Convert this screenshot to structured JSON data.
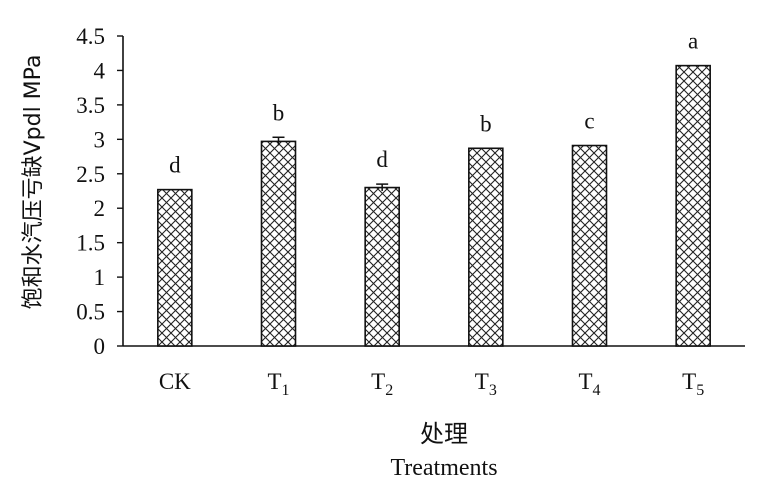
{
  "chart_data": {
    "type": "bar",
    "categories": [
      {
        "base": "CK",
        "sub": ""
      },
      {
        "base": "T",
        "sub": "1"
      },
      {
        "base": "T",
        "sub": "2"
      },
      {
        "base": "T",
        "sub": "3"
      },
      {
        "base": "T",
        "sub": "4"
      },
      {
        "base": "T",
        "sub": "5"
      }
    ],
    "values": [
      2.27,
      2.97,
      2.3,
      2.87,
      2.91,
      4.07
    ],
    "errors": [
      0.0,
      0.06,
      0.05,
      0.0,
      0.0,
      0.0
    ],
    "significance": [
      "d",
      "b",
      "d",
      "b",
      "c",
      "a"
    ],
    "ylabel": "饱和水汽压亏缺Vpdl MPa",
    "xlabel_cn": "处理",
    "xlabel_en": "Treatments",
    "ylim": [
      0,
      4.5
    ],
    "yticks": [
      0,
      0.5,
      1,
      1.5,
      2,
      2.5,
      3,
      3.5,
      4,
      4.5
    ],
    "ytick_labels": [
      "0",
      "0.5",
      "1",
      "1.5",
      "2",
      "2.5",
      "3",
      "3.5",
      "4",
      "4.5"
    ],
    "bar_pattern": "crosshatch-diamond",
    "grid": false,
    "legend": "none"
  }
}
